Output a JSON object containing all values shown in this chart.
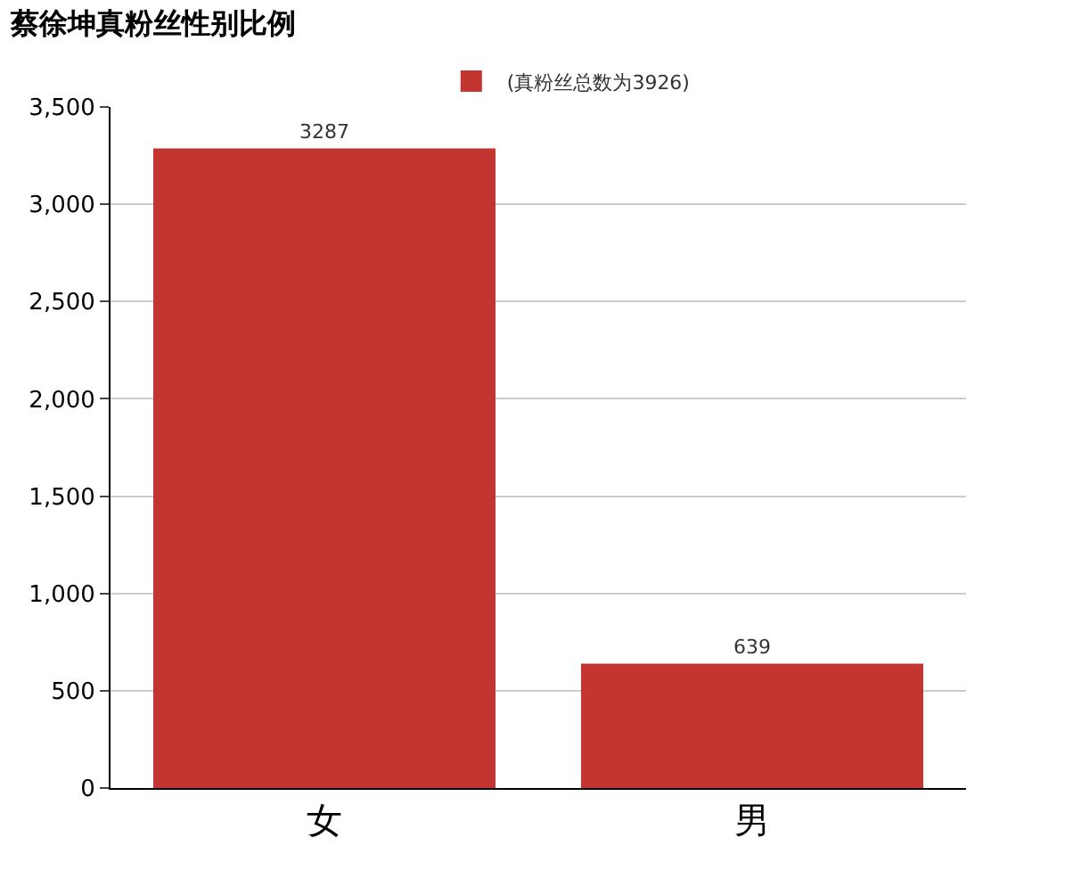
{
  "chart_data": {
    "type": "bar",
    "title": "蔡徐坤真粉丝性别比例",
    "categories": [
      "女",
      "男"
    ],
    "series": [
      {
        "name": "(真粉丝总数为3926)",
        "color": "#c23531",
        "values": [
          3287,
          639
        ]
      }
    ],
    "ylim": [
      0,
      3500
    ],
    "yticks": [
      0,
      {
        "value": 500,
        "label": "500"
      },
      {
        "value": 1000,
        "label": "1,000"
      },
      {
        "value": 1500,
        "label": "1,500"
      },
      {
        "value": 2000,
        "label": "2,000"
      },
      {
        "value": 2500,
        "label": "2,500"
      },
      {
        "value": 3000,
        "label": "3,000"
      },
      {
        "value": 3500,
        "label": "3,500"
      }
    ],
    "grid": "y",
    "legend": "top",
    "data_labels": true
  }
}
